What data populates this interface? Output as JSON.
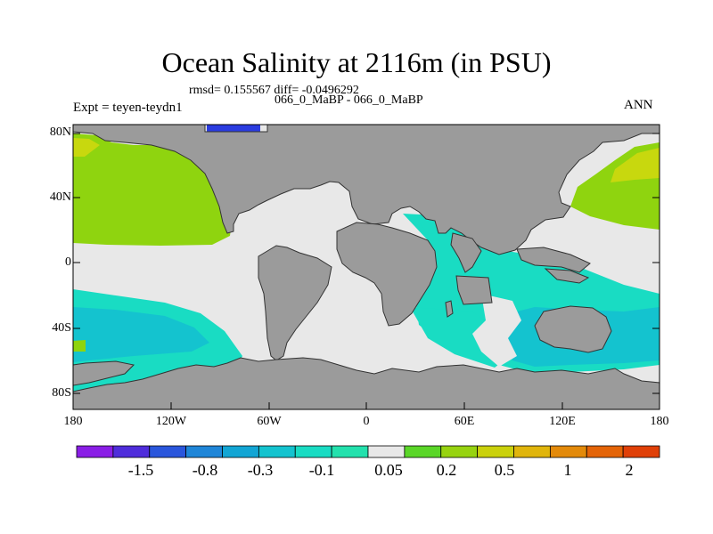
{
  "title": "Ocean Salinity at 2116m (in PSU)",
  "stats_line": "rmsd= 0.155567 diff= -0.0496292",
  "comparison": "066_0_MaBP - 066_0_MaBP",
  "experiment": "Expt = teyen-teydn1",
  "season": "ANN",
  "lat_ticks": [
    "80N",
    "40N",
    "0",
    "40S",
    "80S"
  ],
  "lon_ticks": [
    "180",
    "120W",
    "60W",
    "0",
    "60E",
    "120E",
    "180"
  ],
  "colorbar": {
    "labels": [
      "-1.5",
      "-0.8",
      "-0.3",
      "-0.1",
      "0.05",
      "0.2",
      "0.5",
      "1",
      "2"
    ],
    "colors": [
      "#8a1ee6",
      "#4f2ddb",
      "#2a56dc",
      "#1f86d8",
      "#12a5d4",
      "#14c3cf",
      "#19dcc3",
      "#23e1ad",
      "#e8e8e8",
      "#5ad628",
      "#97d310",
      "#cad10c",
      "#e0b50c",
      "#e38a0a",
      "#e46408",
      "#e04008"
    ]
  },
  "colors": {
    "land": "#9b9b9b",
    "neutral": "#e8e8e8",
    "green": "#8fd40f",
    "teal": "#19dcc3",
    "cyan": "#14c3cf",
    "blue": "#2a3ce0"
  }
}
